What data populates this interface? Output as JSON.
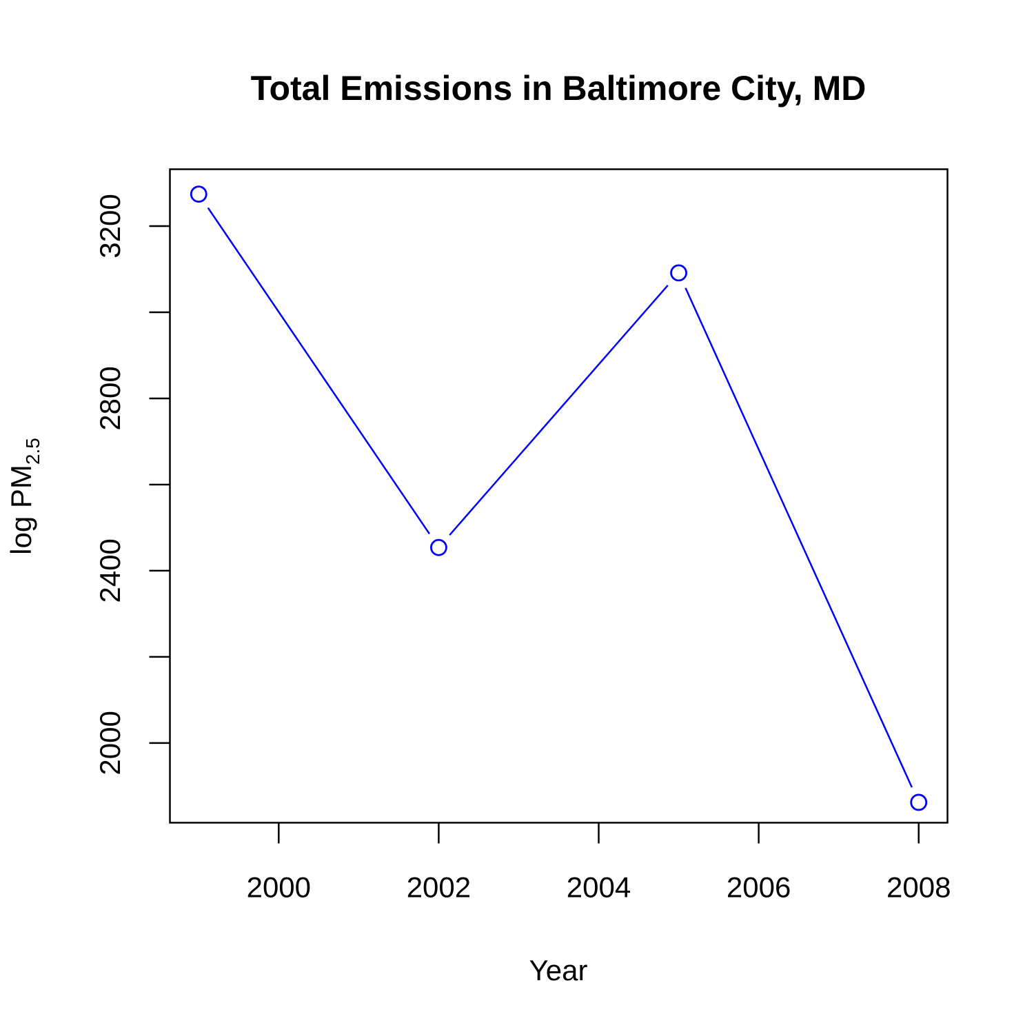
{
  "chart_data": {
    "type": "line",
    "title": "Total Emissions in Baltimore City, MD",
    "xlabel": "Year",
    "ylabel": "log PM",
    "ylabel_subscript": "2.5",
    "x": [
      1999,
      2002,
      2005,
      2008
    ],
    "series": [
      {
        "values": [
          3274.18,
          2453.92,
          3091.35,
          1862.28
        ]
      }
    ],
    "xlim": [
      1998.64,
      2008.36
    ],
    "ylim": [
      1815.0,
      3332.0
    ],
    "xticks": [
      2000,
      2002,
      2004,
      2006,
      2008
    ],
    "yticks": [
      2000,
      2200,
      2400,
      2600,
      2800,
      3000,
      3200
    ],
    "ytick_labels": [
      "2000",
      "",
      "2400",
      "",
      "2800",
      "",
      "3200"
    ],
    "series_color": "#0000ff",
    "marker": "open-circle",
    "grid": false,
    "legend": "none"
  }
}
